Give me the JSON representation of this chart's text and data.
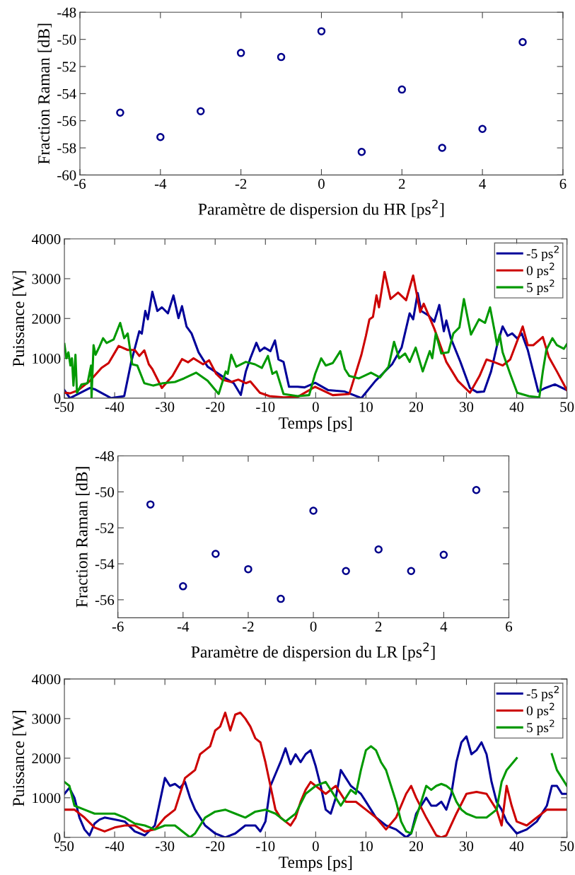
{
  "chart_data": [
    {
      "type": "scatter",
      "xlabel": "Paramètre de dispersion du HR [ps$^{2}$]",
      "ylabel": "Fraction Raman [dB]",
      "marker": "circle",
      "grid": false,
      "legend": false,
      "xlim": [
        -6,
        6
      ],
      "xticks": [
        -6,
        -4,
        -2,
        0,
        2,
        4,
        6
      ],
      "ylim": [
        -60,
        -48
      ],
      "yticks": [
        -60,
        -58,
        -56,
        -54,
        -52,
        -50,
        -48
      ],
      "x": [
        -5,
        -4,
        -3,
        -2,
        -1,
        0,
        1,
        2,
        3,
        4,
        5
      ],
      "series": [
        {
          "color": "#00008b",
          "values": [
            -55.4,
            -57.2,
            -55.3,
            -51.0,
            -51.3,
            -49.4,
            -58.3,
            -53.7,
            -58.0,
            -56.6,
            -50.2
          ]
        }
      ]
    },
    {
      "type": "line",
      "xlabel": "Temps [ps]",
      "ylabel": "Puissance [W]",
      "grid": false,
      "legend": "top right",
      "marker": "none",
      "line_style": "solid",
      "xlim": [
        -50,
        50
      ],
      "xticks": [
        -50,
        -40,
        -30,
        -20,
        -10,
        0,
        10,
        20,
        30,
        40,
        50
      ],
      "ylim": [
        0,
        4000
      ],
      "yticks": [
        0,
        1000,
        2000,
        3000,
        4000
      ],
      "series": [
        {
          "name": "-5 ps$^{2}$",
          "color": "#000099",
          "x": [
            -50,
            -48.9,
            -44.9,
            -44,
            -40.7,
            -38.1,
            -36.7,
            -35.1,
            -34.6,
            -33.9,
            -33.4,
            -32.5,
            -31.5,
            -30.6,
            -29.4,
            -28.3,
            -27.3,
            -26.6,
            -25.7,
            -24.7,
            -23.3,
            -21.5,
            -18.6,
            -16.3,
            -14.9,
            -13.9,
            -13,
            -11.8,
            -11.1,
            -10.2,
            -9,
            -8.1,
            -7.4,
            -6.4,
            -5.3,
            -3.6,
            -2.2,
            -0.1,
            2.5,
            5.8,
            9.1,
            11.9,
            15.2,
            17.1,
            18.7,
            19.4,
            20.3,
            21.0,
            22.5,
            23.6,
            24.6,
            25.5,
            26,
            26.9,
            28.8,
            30.7,
            32.1,
            33.5,
            34.9,
            36.1,
            37.2,
            38.2,
            39.1,
            40.1,
            41,
            42.2,
            44.3,
            45.7,
            47.6,
            50
          ],
          "values": [
            200,
            0,
            255,
            225,
            0,
            50,
            910,
            1680,
            1620,
            2190,
            1980,
            2670,
            2190,
            2280,
            2130,
            2580,
            2010,
            2310,
            1800,
            1625,
            1150,
            790,
            550,
            375,
            80,
            670,
            1000,
            1390,
            1180,
            1270,
            1180,
            1450,
            970,
            910,
            285,
            285,
            270,
            385,
            200,
            165,
            0,
            435,
            850,
            1270,
            2130,
            1980,
            2640,
            2190,
            2070,
            1920,
            2340,
            1680,
            1950,
            1500,
            910,
            255,
            150,
            165,
            670,
            1330,
            1800,
            1565,
            1625,
            1500,
            1625,
            1210,
            165,
            255,
            345,
            200
          ]
        },
        {
          "name": "0 ps$^{2}$",
          "color": "#cc0000",
          "x": [
            -50,
            -48.9,
            -47.3,
            -44.9,
            -42.6,
            -41.2,
            -39.2,
            -37.4,
            -36,
            -35.1,
            -34.1,
            -33.2,
            -32.5,
            -30.6,
            -28.5,
            -26.6,
            -25.4,
            -24.3,
            -22.4,
            -21.2,
            -19.8,
            -18.6,
            -16.8,
            -15.4,
            -13.9,
            -13,
            -11.1,
            -9.2,
            -6.4,
            -3.6,
            -0.1,
            3.4,
            6.7,
            9.1,
            10,
            10.7,
            11.4,
            12.1,
            12.6,
            13.7,
            14.9,
            16.4,
            18,
            19.4,
            20.8,
            21.5,
            23.6,
            26,
            28.3,
            30.7,
            32.6,
            34,
            35.4,
            37.2,
            38.7,
            41.2,
            42.2,
            43.3,
            45.2,
            46.4,
            48,
            50
          ],
          "values": [
            137,
            120,
            195,
            435,
            760,
            880,
            1310,
            1210,
            1210,
            1060,
            1200,
            850,
            730,
            255,
            555,
            980,
            900,
            1000,
            850,
            950,
            610,
            465,
            405,
            465,
            375,
            420,
            135,
            50,
            20,
            30,
            285,
            75,
            105,
            1090,
            1565,
            1980,
            2040,
            2580,
            2280,
            3170,
            2490,
            2650,
            2460,
            3080,
            2160,
            2370,
            1745,
            910,
            435,
            135,
            555,
            970,
            910,
            820,
            970,
            1800,
            1330,
            1330,
            1535,
            1030,
            670,
            200
          ]
        },
        {
          "name": "5 ps$^{2}$",
          "color": "#009900",
          "x": [
            -50,
            -49.6,
            -49.2,
            -48.8,
            -48.5,
            -48.2,
            -47.8,
            -47.5,
            -46.6,
            -45.4,
            -44.7,
            -44.6,
            -44.2,
            -43.8,
            -43,
            -42.3,
            -41.6,
            -40.2,
            -38.9,
            -38.1,
            -37.4,
            -36.5,
            -35.5,
            -34.1,
            -32.3,
            -30.4,
            -28,
            -26.2,
            -23.8,
            -21.5,
            -19.3,
            -17.9,
            -17.5,
            -16.8,
            -15.8,
            -13.9,
            -12.1,
            -10.7,
            -9.5,
            -8.6,
            -7.8,
            -6.4,
            -3.6,
            -1.3,
            -0.1,
            1.1,
            2,
            3.4,
            4.9,
            5.8,
            6.7,
            8.6,
            11,
            12.8,
            14.5,
            15.6,
            16.6,
            17.8,
            18.7,
            19.9,
            21.3,
            22.7,
            23.2,
            23.9,
            25,
            26.4,
            27.4,
            28.6,
            29.5,
            30.2,
            30.9,
            32.5,
            33.7,
            34.7,
            35.6,
            36.1,
            36.6,
            37.2,
            38.7,
            40.1,
            42.4,
            44.5,
            45.2,
            45.9,
            47.1,
            48,
            49.4,
            50
          ],
          "values": [
            1360,
            1000,
            1150,
            820,
            1000,
            315,
            1090,
            135,
            345,
            375,
            820,
            0,
            1330,
            1090,
            1300,
            1505,
            1385,
            1475,
            1890,
            1505,
            1625,
            850,
            820,
            375,
            315,
            375,
            405,
            495,
            640,
            435,
            105,
            670,
            610,
            1090,
            790,
            910,
            850,
            760,
            1060,
            610,
            670,
            105,
            50,
            75,
            610,
            1000,
            820,
            880,
            1180,
            730,
            555,
            495,
            640,
            520,
            790,
            1415,
            1000,
            1120,
            910,
            1270,
            670,
            1180,
            1000,
            1625,
            1120,
            1150,
            1625,
            1775,
            2490,
            2040,
            1595,
            1980,
            1890,
            2280,
            1685,
            1330,
            1595,
            1150,
            610,
            135,
            50,
            20,
            670,
            1210,
            1505,
            1330,
            1240,
            1360
          ]
        }
      ]
    },
    {
      "type": "scatter",
      "xlabel": "Paramètre de dispersion du LR [ps$^{2}$]",
      "ylabel": "Fraction Raman [dB]",
      "marker": "circle",
      "grid": false,
      "legend": false,
      "xlim": [
        -6,
        6
      ],
      "xticks": [
        -6,
        -4,
        -2,
        0,
        2,
        4,
        6
      ],
      "ylim": [
        -57,
        -48
      ],
      "yticks": [
        -56,
        -54,
        -52,
        -50,
        -48
      ],
      "x": [
        -5,
        -4,
        -3,
        -2,
        -1,
        0,
        1,
        2,
        3,
        4,
        5
      ],
      "series": [
        {
          "color": "#00008b",
          "values": [
            -50.7,
            -55.25,
            -53.45,
            -54.3,
            -55.95,
            -51.05,
            -54.4,
            -53.2,
            -54.4,
            -53.5,
            -49.9
          ]
        }
      ]
    },
    {
      "type": "line",
      "xlabel": "Temps [ps]",
      "ylabel": "Puissance [W]",
      "grid": false,
      "legend": "top right",
      "marker": "none",
      "line_style": "solid",
      "xlim": [
        -50,
        50
      ],
      "xticks": [
        -50,
        -40,
        -30,
        -20,
        -10,
        0,
        10,
        20,
        30,
        40,
        50
      ],
      "ylim": [
        0,
        4000
      ],
      "yticks": [
        0,
        1000,
        2000,
        3000,
        4000
      ],
      "series": [
        {
          "name": "-5 ps$^{2}$",
          "color": "#000099",
          "x": [
            -50,
            -49,
            -48,
            -47,
            -46,
            -45,
            -44,
            -43,
            -42,
            -40,
            -38,
            -36,
            -34,
            -32,
            -31,
            -30,
            -29,
            -28,
            -27,
            -26,
            -25,
            -24,
            -22,
            -20,
            -18,
            -16,
            -14,
            -12,
            -11,
            -10,
            -9,
            -8,
            -7,
            -6,
            -5,
            -4,
            -3,
            -2,
            -1,
            0,
            1,
            2,
            3,
            4,
            5,
            6,
            7,
            8,
            9,
            10,
            12,
            14,
            16,
            18,
            19,
            20,
            21,
            22,
            23,
            24,
            25,
            26,
            27,
            28,
            29,
            30,
            31,
            32,
            33,
            34,
            35,
            36,
            37,
            38,
            40,
            42,
            44,
            46,
            47,
            48,
            49,
            50
          ],
          "values": [
            1100,
            1250,
            1000,
            500,
            200,
            50,
            350,
            450,
            500,
            450,
            400,
            150,
            50,
            300,
            900,
            1500,
            1300,
            1350,
            1250,
            1400,
            1000,
            700,
            300,
            100,
            0,
            100,
            300,
            300,
            150,
            400,
            1300,
            1600,
            1900,
            2250,
            1850,
            2100,
            1900,
            2100,
            2200,
            1800,
            1300,
            700,
            600,
            1000,
            1700,
            1500,
            1300,
            1200,
            1100,
            900,
            500,
            300,
            200,
            0,
            100,
            600,
            800,
            1000,
            800,
            800,
            900,
            700,
            1100,
            1900,
            2400,
            2550,
            2100,
            2200,
            2400,
            2100,
            1400,
            900,
            700,
            400,
            100,
            200,
            400,
            800,
            1300,
            1300,
            1100,
            1100
          ]
        },
        {
          "name": "0 ps$^{2}$",
          "color": "#cc0000",
          "x": [
            -50,
            -48,
            -46,
            -44,
            -42,
            -40,
            -38,
            -36,
            -34,
            -32,
            -30,
            -28,
            -27,
            -26,
            -25,
            -24,
            -23,
            -22,
            -21,
            -20,
            -19,
            -18,
            -17,
            -16,
            -15,
            -14,
            -13,
            -12,
            -11,
            -10,
            -9,
            -8,
            -7,
            -6,
            -5,
            -4,
            -3,
            -2,
            -1,
            0,
            1,
            2,
            4,
            6,
            8,
            10,
            12,
            14,
            16,
            18,
            19,
            20,
            22,
            24,
            25,
            26,
            28,
            30,
            32,
            34,
            36,
            37,
            38,
            39,
            40,
            42,
            44,
            46,
            48,
            50
          ],
          "values": [
            700,
            700,
            500,
            250,
            150,
            250,
            300,
            300,
            150,
            200,
            500,
            700,
            1100,
            1500,
            1600,
            1700,
            2100,
            2200,
            2300,
            2700,
            2800,
            3150,
            2700,
            3100,
            3150,
            3000,
            2800,
            2500,
            2400,
            1900,
            1300,
            700,
            500,
            400,
            300,
            500,
            900,
            1200,
            1400,
            1300,
            1200,
            1100,
            1300,
            900,
            900,
            700,
            500,
            200,
            500,
            1100,
            1300,
            1000,
            500,
            50,
            0,
            50,
            600,
            1100,
            1150,
            1100,
            700,
            300,
            1300,
            800,
            400,
            300,
            500,
            700,
            700,
            700
          ]
        },
        {
          "name": "5 ps$^{2}$",
          "color": "#009900",
          "x": [
            -50,
            -49,
            -48,
            -46,
            -44,
            -42,
            -40,
            -38,
            -36,
            -34,
            -32,
            -30,
            -28,
            -26,
            -25,
            -24,
            -22,
            -20,
            -18,
            -16,
            -14,
            -12,
            -10,
            -8,
            -6,
            -4,
            -2,
            0,
            2,
            4,
            5,
            6,
            7,
            8,
            9,
            10,
            11,
            12,
            13,
            14,
            15,
            16,
            17,
            18,
            19,
            20,
            21,
            22,
            23,
            24,
            25,
            26,
            27,
            28,
            29,
            30,
            32,
            34,
            36,
            37,
            38,
            40,
            41,
            42,
            44,
            46,
            47,
            48,
            49,
            50
          ],
          "values": [
            1400,
            1300,
            800,
            700,
            600,
            600,
            600,
            500,
            350,
            300,
            200,
            300,
            300,
            100,
            0,
            100,
            500,
            650,
            700,
            600,
            500,
            650,
            700,
            600,
            400,
            600,
            1100,
            1300,
            1400,
            1000,
            800,
            1000,
            1200,
            1100,
            1700,
            2200,
            2300,
            2200,
            1900,
            1700,
            1300,
            900,
            400,
            150,
            100,
            500,
            900,
            1300,
            1200,
            1300,
            1350,
            1300,
            1200,
            900,
            700,
            600,
            500,
            500,
            700,
            1400,
            1700,
            2000,
            null,
            null,
            null,
            null,
            2100,
            1700,
            1500,
            1300
          ]
        }
      ]
    }
  ]
}
